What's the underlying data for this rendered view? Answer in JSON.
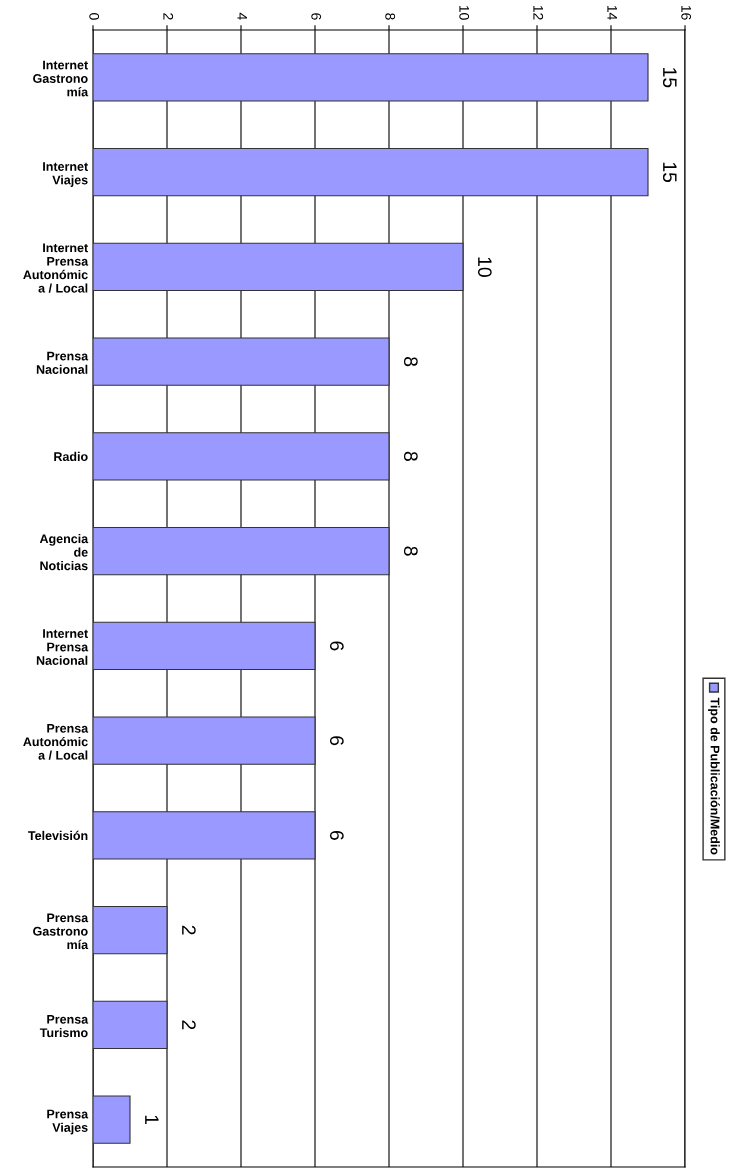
{
  "chart_data": {
    "type": "bar",
    "orientation": "horizontal",
    "categories": [
      "Internet\nGastrono\nmía",
      "Internet\nViajes",
      "Internet\nPrensa\nAutonómic\na / Local",
      "Prensa\nNacional",
      "Radio",
      "Agencia\nde\nNoticias",
      "Internet\nPrensa\nNacional",
      "Prensa\nAutonómic\na / Local",
      "Televisión",
      "Prensa\nGastrono\nmía",
      "Prensa\nTurismo",
      "Prensa\nViajes"
    ],
    "series": [
      {
        "name": "Tipo de Publicación/Medio",
        "color": "#9999ff",
        "values": [
          15,
          15,
          10,
          8,
          8,
          8,
          6,
          6,
          6,
          2,
          2,
          1
        ]
      }
    ],
    "xlim": [
      0,
      16
    ],
    "xticks": [
      0,
      2,
      4,
      6,
      8,
      10,
      12,
      14,
      16
    ],
    "grid": "x",
    "legend": "right",
    "data_labels": true
  }
}
